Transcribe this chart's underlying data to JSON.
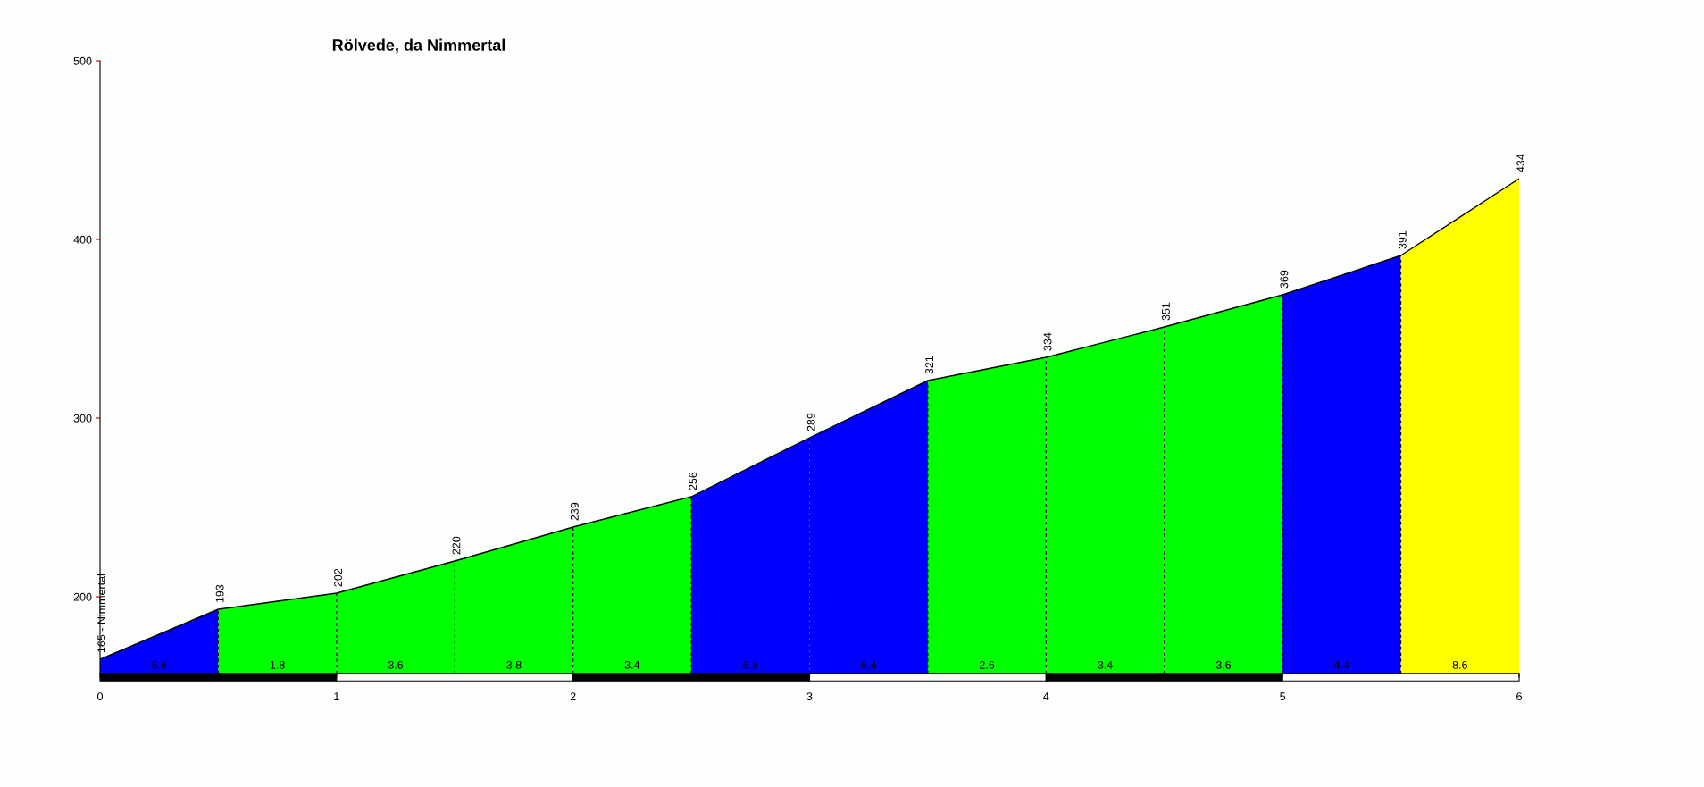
{
  "chart_data": {
    "type": "area",
    "title": "Rölvede, da Nimmertal",
    "xlim": [
      0,
      6
    ],
    "xticks": [
      0,
      1,
      2,
      3,
      4,
      5,
      6
    ],
    "ylim": [
      157,
      500
    ],
    "yticks": [
      200,
      300,
      400,
      500
    ],
    "grid": false,
    "legend": false,
    "series": [
      {
        "color": "#0000ff",
        "x": [
          0,
          0.5
        ],
        "values": [
          165,
          193
        ]
      },
      {
        "color": "#00ff00",
        "x": [
          0.5,
          1
        ],
        "values": [
          193,
          202
        ]
      },
      {
        "color": "#00ff00",
        "x": [
          1,
          1.5
        ],
        "values": [
          202,
          220
        ]
      },
      {
        "color": "#00ff00",
        "x": [
          1.5,
          2
        ],
        "values": [
          220,
          239
        ]
      },
      {
        "color": "#00ff00",
        "x": [
          2,
          2.5
        ],
        "values": [
          239,
          256
        ]
      },
      {
        "color": "#0000ff",
        "x": [
          2.5,
          3
        ],
        "values": [
          256,
          289
        ]
      },
      {
        "color": "#0000ff",
        "x": [
          3,
          3.5
        ],
        "values": [
          289,
          321
        ]
      },
      {
        "color": "#00ff00",
        "x": [
          3.5,
          4
        ],
        "values": [
          321,
          334
        ]
      },
      {
        "color": "#00ff00",
        "x": [
          4,
          4.5
        ],
        "values": [
          334,
          351
        ]
      },
      {
        "color": "#00ff00",
        "x": [
          4.5,
          5
        ],
        "values": [
          351,
          369
        ]
      },
      {
        "color": "#0000ff",
        "x": [
          5,
          5.5
        ],
        "values": [
          369,
          391
        ]
      },
      {
        "color": "#ffff00",
        "x": [
          5.5,
          6
        ],
        "values": [
          391,
          434
        ]
      },
      {
        "type": "line",
        "color": "#000000",
        "x": [
          0,
          0.5,
          1,
          1.5,
          2,
          2.5,
          3,
          3.5,
          4,
          4.5,
          5,
          5.5,
          6
        ],
        "values": [
          165,
          193,
          202,
          220,
          239,
          256,
          289,
          321,
          334,
          351,
          369,
          391,
          434
        ],
        "value_labels": [
          "165 - Nimmertal",
          "193",
          "202",
          "220",
          "239",
          "256",
          "289",
          "321",
          "334",
          "351",
          "369",
          "391",
          "434"
        ]
      }
    ],
    "annotations": [
      {
        "text": "5.6",
        "x": 0.25,
        "y": 157
      },
      {
        "text": "1.8",
        "x": 0.75,
        "y": 157
      },
      {
        "text": "3.6",
        "x": 1.25,
        "y": 157
      },
      {
        "text": "3.8",
        "x": 1.75,
        "y": 157
      },
      {
        "text": "3.4",
        "x": 2.25,
        "y": 157
      },
      {
        "text": "6.6",
        "x": 2.75,
        "y": 157
      },
      {
        "text": "6.4",
        "x": 3.25,
        "y": 157
      },
      {
        "text": "2.6",
        "x": 3.75,
        "y": 157
      },
      {
        "text": "3.4",
        "x": 4.25,
        "y": 157
      },
      {
        "text": "3.6",
        "x": 4.75,
        "y": 157
      },
      {
        "text": "4.4",
        "x": 5.25,
        "y": 157
      },
      {
        "text": "8.6",
        "x": 5.75,
        "y": 157
      }
    ]
  }
}
